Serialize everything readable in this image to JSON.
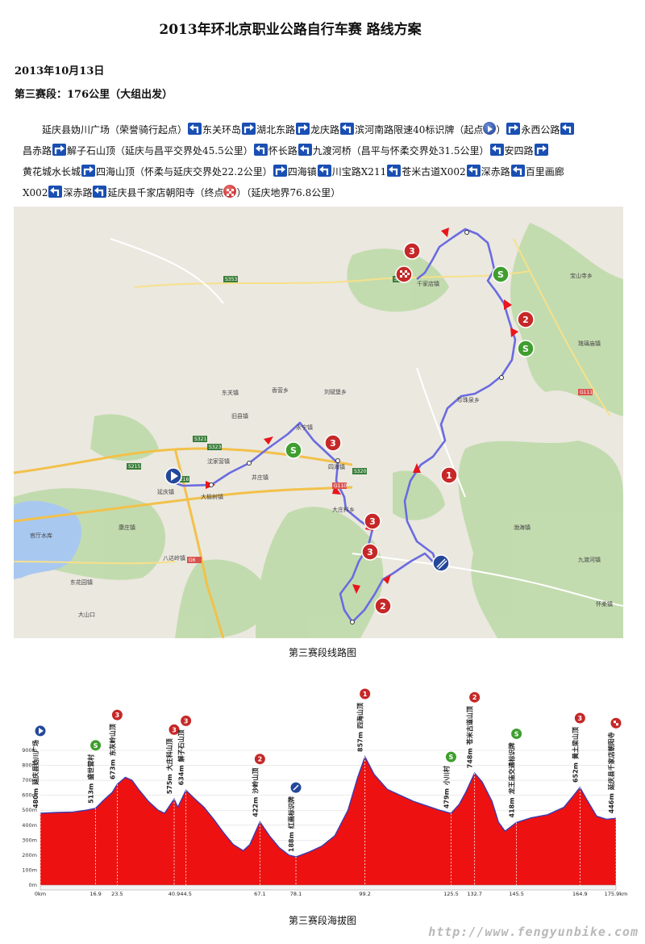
{
  "title": "2013年环北京职业公路自行车赛 路线方案",
  "date": "2013年10月13日",
  "stage": "第三赛段：176公里（大组出发）",
  "route": {
    "line1": [
      {
        "text": "延庆县妫川广场（荣誉骑行起点）",
        "icon": "turn-left-icon"
      },
      {
        "text": "东关环岛",
        "icon": "turn-right-icon"
      },
      {
        "text": "湖北东路",
        "icon": "turn-right-icon"
      },
      {
        "text": "龙庆路",
        "icon": "turn-left-icon"
      },
      {
        "text": "滨河南路限速40标识牌（起点",
        "icon": "start-icon"
      },
      {
        "text": "）",
        "icon": "turn-right-icon"
      },
      {
        "text": "永西公路",
        "icon": "turn-left-icon"
      }
    ],
    "line2": [
      {
        "text": "昌赤路",
        "icon": "turn-right-icon"
      },
      {
        "text": "解子石山顶（延庆与昌平交界处45.5公里）",
        "icon": "turn-left-icon"
      },
      {
        "text": "怀长路",
        "icon": "turn-left-icon"
      },
      {
        "text": "九渡河桥（昌平与怀柔交界处31.5公里）",
        "icon": "turn-left-icon"
      },
      {
        "text": "安四路",
        "icon": "turn-right-icon"
      }
    ],
    "line3": [
      {
        "text": "黄花城水长城",
        "icon": "turn-right-icon"
      },
      {
        "text": "四海山顶（怀柔与延庆交界处22.2公里）",
        "icon": "turn-right-icon"
      },
      {
        "text": "四海镇",
        "icon": "turn-left-icon"
      },
      {
        "text": "川宝路X211",
        "icon": "turn-left-icon"
      },
      {
        "text": "苍米古道X002",
        "icon": "turn-left-icon"
      },
      {
        "text": "深赤路",
        "icon": "turn-left-icon"
      },
      {
        "text": "百里画廊",
        "icon": ""
      }
    ],
    "line4": [
      {
        "text": "X002",
        "icon": "turn-left-icon"
      },
      {
        "text": "深赤路",
        "icon": "turn-left-icon"
      },
      {
        "text": "延庆县千家店朝阳寺（终点",
        "icon": "finish-icon"
      },
      {
        "text": "）（延庆地界76.8公里）",
        "icon": ""
      }
    ]
  },
  "map": {
    "caption": "第三赛段线路图",
    "towns": [
      "延庆镇",
      "东关镇",
      "刘斌堡乡",
      "永宁镇",
      "香营乡",
      "旧县镇",
      "沈家营镇",
      "井庄镇",
      "大榆树镇",
      "四海镇",
      "珍珠泉乡",
      "大庄科乡",
      "九渡河镇",
      "渤海镇",
      "宝山寺乡",
      "琉璃庙镇",
      "康庄镇",
      "八达岭镇",
      "大山口",
      "东花园镇",
      "怀柔镇",
      "千家店镇"
    ],
    "roads": [
      "S323",
      "S216",
      "S353",
      "S309",
      "G110",
      "G6",
      "S320",
      "S215",
      "G111",
      "S321"
    ],
    "lake_label": "官厅水库"
  },
  "profile": {
    "caption": "第三赛段海拔图",
    "y_ticks": [
      "0m",
      "100m",
      "200m",
      "300m",
      "400m",
      "500m",
      "600m",
      "700m",
      "800m",
      "900m"
    ],
    "x_ticks": [
      "0km",
      "16.9",
      "23.5",
      "40.9",
      "44.5",
      "67.1",
      "78.1",
      "99.2",
      "125.5",
      "132.7",
      "145.5",
      "164.9",
      "175.9km"
    ],
    "points": [
      {
        "km": 0,
        "elev": "480m",
        "name": "延庆县妫川广场",
        "badge": "start"
      },
      {
        "km": 16.9,
        "elev": "513m",
        "name": "盛世营村",
        "badge": "S"
      },
      {
        "km": 23.5,
        "elev": "673m",
        "name": "东灰岭山顶",
        "badge": "3"
      },
      {
        "km": 40.9,
        "elev": "575m",
        "name": "大庄科山顶",
        "badge": "3"
      },
      {
        "km": 44.5,
        "elev": "634m",
        "name": "解子石山顶",
        "badge": "3"
      },
      {
        "km": 67.1,
        "elev": "422m",
        "name": "沙岭山顶",
        "badge": "2"
      },
      {
        "km": 78.1,
        "elev": "188m",
        "name": "红画标识牌",
        "badge": "feed"
      },
      {
        "km": 99.2,
        "elev": "857m",
        "name": "四海山顶",
        "badge": "1"
      },
      {
        "km": 125.5,
        "elev": "479m",
        "name": "小川村",
        "badge": "S"
      },
      {
        "km": 132.7,
        "elev": "748m",
        "name": "苍米古道山顶",
        "badge": "2"
      },
      {
        "km": 145.5,
        "elev": "418m",
        "name": "龙王庙交通标识牌",
        "badge": "S"
      },
      {
        "km": 164.9,
        "elev": "652m",
        "name": "黄土梁山顶",
        "badge": "3"
      },
      {
        "km": 175.9,
        "elev": "446m",
        "name": "延庆县千家店朝阳寺",
        "badge": "finish"
      }
    ],
    "elevation_curve": [
      [
        0,
        480
      ],
      [
        5,
        485
      ],
      [
        10,
        488
      ],
      [
        14,
        500
      ],
      [
        16.9,
        513
      ],
      [
        19,
        560
      ],
      [
        21,
        600
      ],
      [
        22,
        620
      ],
      [
        23.5,
        673
      ],
      [
        26,
        720
      ],
      [
        28,
        700
      ],
      [
        30,
        640
      ],
      [
        33,
        560
      ],
      [
        36,
        500
      ],
      [
        38,
        480
      ],
      [
        40.9,
        575
      ],
      [
        42,
        520
      ],
      [
        44.5,
        634
      ],
      [
        47,
        580
      ],
      [
        50,
        520
      ],
      [
        53,
        440
      ],
      [
        56,
        350
      ],
      [
        59,
        270
      ],
      [
        62,
        230
      ],
      [
        64,
        270
      ],
      [
        67.1,
        422
      ],
      [
        70,
        330
      ],
      [
        73,
        250
      ],
      [
        76,
        200
      ],
      [
        78.1,
        188
      ],
      [
        82,
        220
      ],
      [
        86,
        260
      ],
      [
        90,
        330
      ],
      [
        94,
        500
      ],
      [
        97,
        720
      ],
      [
        99.2,
        857
      ],
      [
        102,
        740
      ],
      [
        106,
        640
      ],
      [
        110,
        600
      ],
      [
        114,
        560
      ],
      [
        118,
        530
      ],
      [
        122,
        500
      ],
      [
        125.5,
        479
      ],
      [
        128,
        540
      ],
      [
        130,
        620
      ],
      [
        132.7,
        748
      ],
      [
        135,
        690
      ],
      [
        138,
        560
      ],
      [
        140,
        420
      ],
      [
        142,
        360
      ],
      [
        145.5,
        418
      ],
      [
        150,
        450
      ],
      [
        155,
        470
      ],
      [
        160,
        520
      ],
      [
        163,
        600
      ],
      [
        164.9,
        652
      ],
      [
        167,
        570
      ],
      [
        170,
        460
      ],
      [
        173,
        440
      ],
      [
        175.9,
        446
      ]
    ]
  },
  "watermark": "http://www.fengyunbike.com"
}
